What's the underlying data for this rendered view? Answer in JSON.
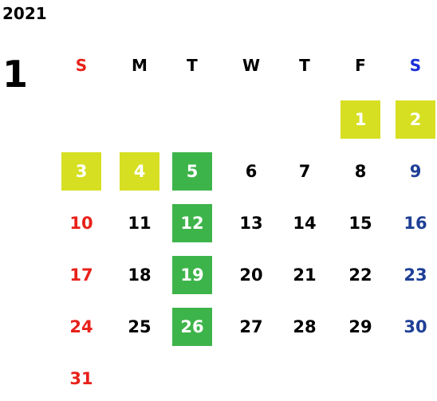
{
  "year": "2021",
  "month": "1",
  "colors": {
    "sunday": "#e8211a",
    "saturday": "#1e3f96",
    "saturday_header": "#1a2fd8",
    "weekday": "#000000",
    "yellow_box": "#d6df22",
    "green_box": "#3db44a",
    "box_text": "#ffffff"
  },
  "weekdays": [
    {
      "label": "S",
      "kind": "sunday"
    },
    {
      "label": "M",
      "kind": "weekday"
    },
    {
      "label": "T",
      "kind": "weekday"
    },
    {
      "label": "W",
      "kind": "weekday"
    },
    {
      "label": "T",
      "kind": "weekday"
    },
    {
      "label": "F",
      "kind": "weekday"
    },
    {
      "label": "S",
      "kind": "saturday"
    }
  ],
  "days": [
    {
      "label": "1",
      "col": 5,
      "row": 0,
      "highlight": "yellow"
    },
    {
      "label": "2",
      "col": 6,
      "row": 0,
      "highlight": "yellow"
    },
    {
      "label": "3",
      "col": 0,
      "row": 1,
      "highlight": "yellow"
    },
    {
      "label": "4",
      "col": 1,
      "row": 1,
      "highlight": "yellow"
    },
    {
      "label": "5",
      "col": 2,
      "row": 1,
      "highlight": "green"
    },
    {
      "label": "6",
      "col": 3,
      "row": 1,
      "highlight": ""
    },
    {
      "label": "7",
      "col": 4,
      "row": 1,
      "highlight": ""
    },
    {
      "label": "8",
      "col": 5,
      "row": 1,
      "highlight": ""
    },
    {
      "label": "9",
      "col": 6,
      "row": 1,
      "highlight": ""
    },
    {
      "label": "10",
      "col": 0,
      "row": 2,
      "highlight": ""
    },
    {
      "label": "11",
      "col": 1,
      "row": 2,
      "highlight": ""
    },
    {
      "label": "12",
      "col": 2,
      "row": 2,
      "highlight": "green"
    },
    {
      "label": "13",
      "col": 3,
      "row": 2,
      "highlight": ""
    },
    {
      "label": "14",
      "col": 4,
      "row": 2,
      "highlight": ""
    },
    {
      "label": "15",
      "col": 5,
      "row": 2,
      "highlight": ""
    },
    {
      "label": "16",
      "col": 6,
      "row": 2,
      "highlight": ""
    },
    {
      "label": "17",
      "col": 0,
      "row": 3,
      "highlight": ""
    },
    {
      "label": "18",
      "col": 1,
      "row": 3,
      "highlight": ""
    },
    {
      "label": "19",
      "col": 2,
      "row": 3,
      "highlight": "green"
    },
    {
      "label": "20",
      "col": 3,
      "row": 3,
      "highlight": ""
    },
    {
      "label": "21",
      "col": 4,
      "row": 3,
      "highlight": ""
    },
    {
      "label": "22",
      "col": 5,
      "row": 3,
      "highlight": ""
    },
    {
      "label": "23",
      "col": 6,
      "row": 3,
      "highlight": ""
    },
    {
      "label": "24",
      "col": 0,
      "row": 4,
      "highlight": ""
    },
    {
      "label": "25",
      "col": 1,
      "row": 4,
      "highlight": ""
    },
    {
      "label": "26",
      "col": 2,
      "row": 4,
      "highlight": "green"
    },
    {
      "label": "27",
      "col": 3,
      "row": 4,
      "highlight": ""
    },
    {
      "label": "28",
      "col": 4,
      "row": 4,
      "highlight": ""
    },
    {
      "label": "29",
      "col": 5,
      "row": 4,
      "highlight": ""
    },
    {
      "label": "30",
      "col": 6,
      "row": 4,
      "highlight": ""
    },
    {
      "label": "31",
      "col": 0,
      "row": 5,
      "highlight": ""
    }
  ]
}
